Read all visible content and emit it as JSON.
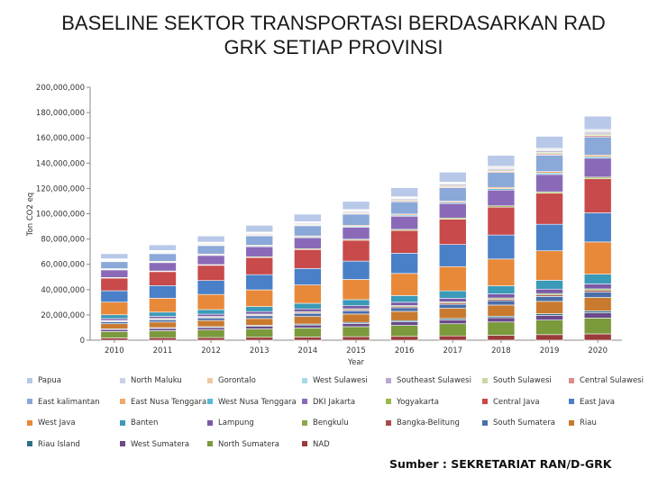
{
  "title": {
    "line1": "BASELINE SEKTOR TRANSPORTASI BERDASARKAN RAD",
    "line2": "GRK SETIAP PROVINSI"
  },
  "source": "Sumber : SEKRETARIAT RAN/D-GRK",
  "chart_data": {
    "type": "bar",
    "stacked": true,
    "xlabel": "Year",
    "ylabel": "Ton CO2 eq",
    "ylim": [
      0,
      200000000
    ],
    "yticks": [
      "0",
      "20,000,000",
      "40,000,000",
      "60,000,000",
      "80,000,000",
      "100,000,000",
      "120,000,000",
      "140,000,000",
      "160,000,000",
      "180,000,000",
      "200,000,000"
    ],
    "categories": [
      "2010",
      "2011",
      "2012",
      "2013",
      "2014",
      "2015",
      "2016",
      "2017",
      "2018",
      "2019",
      "2020"
    ],
    "grid": false,
    "legend_position": "bottom",
    "series": [
      {
        "name": "NAD",
        "color": "#9a3b3b",
        "values": [
          1800000,
          2000000,
          2100000,
          2300000,
          2500000,
          2800000,
          3000000,
          3400000,
          3900000,
          4400000,
          5000000
        ]
      },
      {
        "name": "North Sumatera",
        "color": "#7a9a3c",
        "values": [
          5000000,
          5500000,
          6000000,
          6600000,
          7200000,
          7900000,
          8700000,
          9600000,
          10500000,
          11500000,
          12500000
        ]
      },
      {
        "name": "West Sumatera",
        "color": "#6a4a8a",
        "values": [
          1600000,
          1800000,
          1900000,
          2100000,
          2300000,
          2500000,
          2800000,
          3100000,
          3400000,
          3800000,
          4200000
        ]
      },
      {
        "name": "Riau Island",
        "color": "#2f6f88",
        "values": [
          600000,
          650000,
          700000,
          750000,
          800000,
          900000,
          1000000,
          1100000,
          1200000,
          1300000,
          1500000
        ]
      },
      {
        "name": "Riau",
        "color": "#c97a2f",
        "values": [
          4000000,
          4400000,
          4900000,
          5400000,
          6000000,
          6600000,
          7300000,
          8000000,
          8800000,
          9700000,
          10600000
        ]
      },
      {
        "name": "South Sumatera",
        "color": "#4a6fa8",
        "values": [
          1600000,
          1800000,
          2000000,
          2200000,
          2400000,
          2600000,
          2900000,
          3200000,
          3500000,
          3900000,
          4300000
        ]
      },
      {
        "name": "Bangka-Belitung",
        "color": "#a84a4a",
        "values": [
          500000,
          550000,
          600000,
          650000,
          700000,
          780000,
          850000,
          950000,
          1050000,
          1150000,
          1250000
        ]
      },
      {
        "name": "Bengkulu",
        "color": "#8aa84a",
        "values": [
          500000,
          550000,
          600000,
          650000,
          700000,
          780000,
          850000,
          950000,
          1050000,
          1150000,
          1250000
        ]
      },
      {
        "name": "Lampung",
        "color": "#7a5aa8",
        "values": [
          1500000,
          1650000,
          1800000,
          2000000,
          2200000,
          2400000,
          2600000,
          2900000,
          3200000,
          3500000,
          3900000
        ]
      },
      {
        "name": "Banten",
        "color": "#3a9ab8",
        "values": [
          3000000,
          3300000,
          3600000,
          4000000,
          4400000,
          4800000,
          5300000,
          5800000,
          6400000,
          7000000,
          7700000
        ]
      },
      {
        "name": "West Java",
        "color": "#e8893a",
        "values": [
          10000000,
          11000000,
          12000000,
          13200000,
          14500000,
          16000000,
          17500000,
          19200000,
          21200000,
          23300000,
          25500000
        ]
      },
      {
        "name": "East Java",
        "color": "#4a80c8",
        "values": [
          9000000,
          10000000,
          11000000,
          12000000,
          13000000,
          14500000,
          16000000,
          17500000,
          19000000,
          21000000,
          23000000
        ]
      },
      {
        "name": "Central Java",
        "color": "#c84a4a",
        "values": [
          10000000,
          11000000,
          12000000,
          13500000,
          15000000,
          16500000,
          18000000,
          20000000,
          22000000,
          24500000,
          27000000
        ]
      },
      {
        "name": "Yogyakarta",
        "color": "#9ab84a",
        "values": [
          500000,
          550000,
          600000,
          650000,
          700000,
          780000,
          850000,
          950000,
          1050000,
          1150000,
          1250000
        ]
      },
      {
        "name": "DKI Jakarta",
        "color": "#8a6ab8",
        "values": [
          6000000,
          6600000,
          7200000,
          7900000,
          8700000,
          9500000,
          10400000,
          11400000,
          12500000,
          13700000,
          15000000
        ]
      },
      {
        "name": "West Nusa Tenggara",
        "color": "#5ab8d8",
        "values": [
          500000,
          550000,
          600000,
          650000,
          700000,
          780000,
          850000,
          950000,
          1050000,
          1150000,
          1250000
        ]
      },
      {
        "name": "East Nusa Tenggara",
        "color": "#f0a86a",
        "values": [
          500000,
          550000,
          600000,
          650000,
          700000,
          780000,
          850000,
          950000,
          1050000,
          1150000,
          1250000
        ]
      },
      {
        "name": "East kalimantan",
        "color": "#8aa8d8",
        "values": [
          5500000,
          6000000,
          6600000,
          7300000,
          8000000,
          8800000,
          9700000,
          10700000,
          11800000,
          13000000,
          14300000
        ]
      },
      {
        "name": "Central Sulawesi",
        "color": "#e08a8a",
        "values": [
          400000,
          450000,
          500000,
          550000,
          600000,
          650000,
          720000,
          800000,
          880000,
          970000,
          1070000
        ]
      },
      {
        "name": "South Sulawesi",
        "color": "#c8d8a0",
        "values": [
          500000,
          550000,
          600000,
          650000,
          700000,
          780000,
          850000,
          950000,
          1050000,
          1150000,
          1250000
        ]
      },
      {
        "name": "Southeast Sulawesi",
        "color": "#b8a8d0",
        "values": [
          500000,
          550000,
          600000,
          650000,
          700000,
          780000,
          850000,
          950000,
          1050000,
          1150000,
          1250000
        ]
      },
      {
        "name": "West Sulawesi",
        "color": "#a8d8e8",
        "values": [
          300000,
          330000,
          360000,
          400000,
          440000,
          480000,
          530000,
          580000,
          640000,
          700000,
          770000
        ]
      },
      {
        "name": "Gorontalo",
        "color": "#f0c8a0",
        "values": [
          300000,
          330000,
          360000,
          400000,
          440000,
          480000,
          530000,
          580000,
          640000,
          700000,
          770000
        ]
      },
      {
        "name": "North Maluku",
        "color": "#c8d0e8",
        "values": [
          300000,
          330000,
          360000,
          400000,
          440000,
          480000,
          530000,
          580000,
          640000,
          700000,
          770000
        ]
      },
      {
        "name": "Papua",
        "color": "#b8c8e8",
        "values": [
          4000000,
          4400000,
          4800000,
          5300000,
          5800000,
          6400000,
          7100000,
          7800000,
          8600000,
          9500000,
          10500000
        ]
      }
    ]
  },
  "legend_order": [
    "Papua",
    "North Maluku",
    "Gorontalo",
    "West Sulawesi",
    "Southeast Sulawesi",
    "South Sulawesi",
    "Central Sulawesi",
    "East kalimantan",
    "East Nusa Tenggara",
    "West Nusa Tenggara",
    "DKI Jakarta",
    "Yogyakarta",
    "Central Java",
    "East Java",
    "West Java",
    "Banten",
    "Lampung",
    "Bengkulu",
    "Bangka-Belitung",
    "South Sumatera",
    "Riau",
    "Riau Island",
    "West Sumatera",
    "North Sumatera",
    "NAD"
  ]
}
